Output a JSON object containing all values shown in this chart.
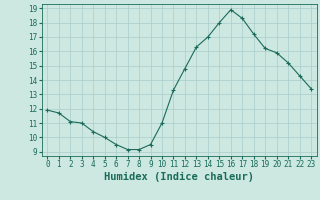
{
  "x": [
    0,
    1,
    2,
    3,
    4,
    5,
    6,
    7,
    8,
    9,
    10,
    11,
    12,
    13,
    14,
    15,
    16,
    17,
    18,
    19,
    20,
    21,
    22,
    23
  ],
  "y": [
    11.9,
    11.7,
    11.1,
    11.0,
    10.4,
    10.0,
    9.5,
    9.15,
    9.15,
    9.5,
    11.0,
    13.3,
    14.8,
    16.3,
    17.0,
    18.0,
    18.9,
    18.3,
    17.2,
    16.2,
    15.9,
    15.2,
    14.3,
    13.4
  ],
  "line_color": "#1a6b5a",
  "marker": "+",
  "marker_size": 3,
  "bg_color": "#cce8e0",
  "grid_color": "#aacccc",
  "xlabel": "Humidex (Indice chaleur)",
  "ylim": [
    9,
    19
  ],
  "xlim": [
    -0.5,
    23.5
  ],
  "yticks": [
    9,
    10,
    11,
    12,
    13,
    14,
    15,
    16,
    17,
    18,
    19
  ],
  "xticks": [
    0,
    1,
    2,
    3,
    4,
    5,
    6,
    7,
    8,
    9,
    10,
    11,
    12,
    13,
    14,
    15,
    16,
    17,
    18,
    19,
    20,
    21,
    22,
    23
  ],
  "tick_label_fontsize": 5.5,
  "xlabel_fontsize": 7.5,
  "line_width": 0.8,
  "marker_edge_width": 0.8
}
